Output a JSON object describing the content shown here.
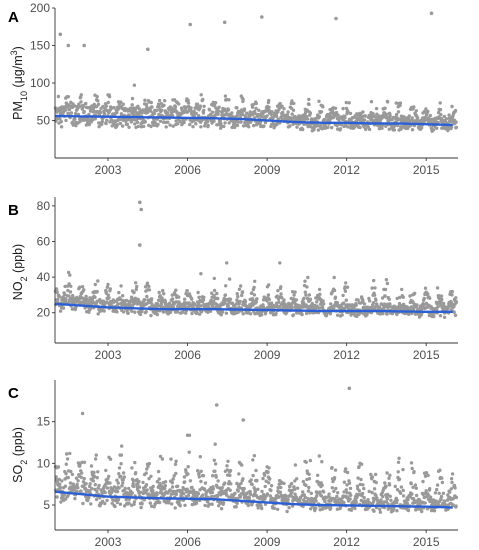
{
  "chart_data": [
    {
      "type": "scatter",
      "panel": "A",
      "ylabel": "PM10 (μg/m³)",
      "ylabel_parts": {
        "pre": "PM",
        "sub": "10",
        "mid": " (μg/m",
        "sup": "3",
        "post": ")"
      },
      "x_range": [
        2001.0,
        2016.2
      ],
      "ylim": [
        0,
        200
      ],
      "xticks": [
        2003,
        2006,
        2009,
        2012,
        2015
      ],
      "yticks": [
        50,
        100,
        150,
        200
      ],
      "grid": false,
      "scatter_color": "#999999",
      "trend_color": "#2b5fd6",
      "trend": {
        "x": [
          2001.0,
          2003,
          2005,
          2007,
          2008,
          2009,
          2010,
          2011,
          2012,
          2013,
          2014,
          2015,
          2016
        ],
        "y": [
          56,
          55,
          54,
          53,
          52,
          50,
          48,
          47,
          47,
          46,
          46,
          45,
          44
        ]
      },
      "seasonal": {
        "base": [
          18,
          25
        ],
        "amp": [
          20,
          30
        ],
        "max": 170
      },
      "outliers": [
        {
          "x": 2001.2,
          "y": 165
        },
        {
          "x": 2001.5,
          "y": 150
        },
        {
          "x": 2002.1,
          "y": 150
        },
        {
          "x": 2006.1,
          "y": 178
        },
        {
          "x": 2007.4,
          "y": 181
        },
        {
          "x": 2008.8,
          "y": 188
        },
        {
          "x": 2011.6,
          "y": 186
        },
        {
          "x": 2015.2,
          "y": 193
        },
        {
          "x": 2004.5,
          "y": 145
        }
      ]
    },
    {
      "type": "scatter",
      "panel": "B",
      "ylabel": "NO2 (ppb)",
      "ylabel_parts": {
        "pre": "NO",
        "sub": "2",
        "mid": " (ppb)",
        "sup": "",
        "post": ""
      },
      "x_range": [
        2001.0,
        2016.2
      ],
      "ylim": [
        3,
        85
      ],
      "xticks": [
        2003,
        2006,
        2009,
        2012,
        2015
      ],
      "yticks": [
        20,
        40,
        60,
        80
      ],
      "grid": false,
      "scatter_color": "#999999",
      "trend_color": "#2b5fd6",
      "trend": {
        "x": [
          2001.0,
          2002,
          2003,
          2005,
          2007,
          2009,
          2011,
          2013,
          2015,
          2016
        ],
        "y": [
          25,
          24,
          23,
          22,
          22,
          21.5,
          21,
          21,
          20.5,
          20.5
        ]
      },
      "seasonal": {
        "base": [
          12,
          16
        ],
        "amp": [
          10,
          16
        ],
        "max": 48
      },
      "outliers": [
        {
          "x": 2004.2,
          "y": 82
        },
        {
          "x": 2004.25,
          "y": 78
        },
        {
          "x": 2004.2,
          "y": 58
        }
      ]
    },
    {
      "type": "scatter",
      "panel": "C",
      "ylabel": "SO2 (ppb)",
      "ylabel_parts": {
        "pre": "SO",
        "sub": "2",
        "mid": " (ppb)",
        "sup": "",
        "post": ""
      },
      "x_range": [
        2001.0,
        2016.2
      ],
      "ylim": [
        2,
        20
      ],
      "xticks": [
        2003,
        2006,
        2009,
        2012,
        2015
      ],
      "yticks": [
        5,
        10,
        15
      ],
      "grid": false,
      "scatter_color": "#999999",
      "trend_color": "#2b5fd6",
      "trend": {
        "x": [
          2001.0,
          2002,
          2003,
          2005,
          2007,
          2008,
          2009,
          2010,
          2011,
          2013,
          2015,
          2016
        ],
        "y": [
          6.6,
          6.3,
          6.0,
          5.8,
          5.7,
          5.5,
          5.3,
          5.1,
          5.0,
          4.9,
          4.8,
          4.7
        ]
      },
      "seasonal": {
        "base": [
          2.5,
          3.8
        ],
        "amp": [
          3.5,
          6.5
        ],
        "max": 17
      },
      "outliers": [
        {
          "x": 2012.1,
          "y": 19
        },
        {
          "x": 2007.1,
          "y": 17
        },
        {
          "x": 2008.1,
          "y": 15.2
        }
      ]
    }
  ]
}
